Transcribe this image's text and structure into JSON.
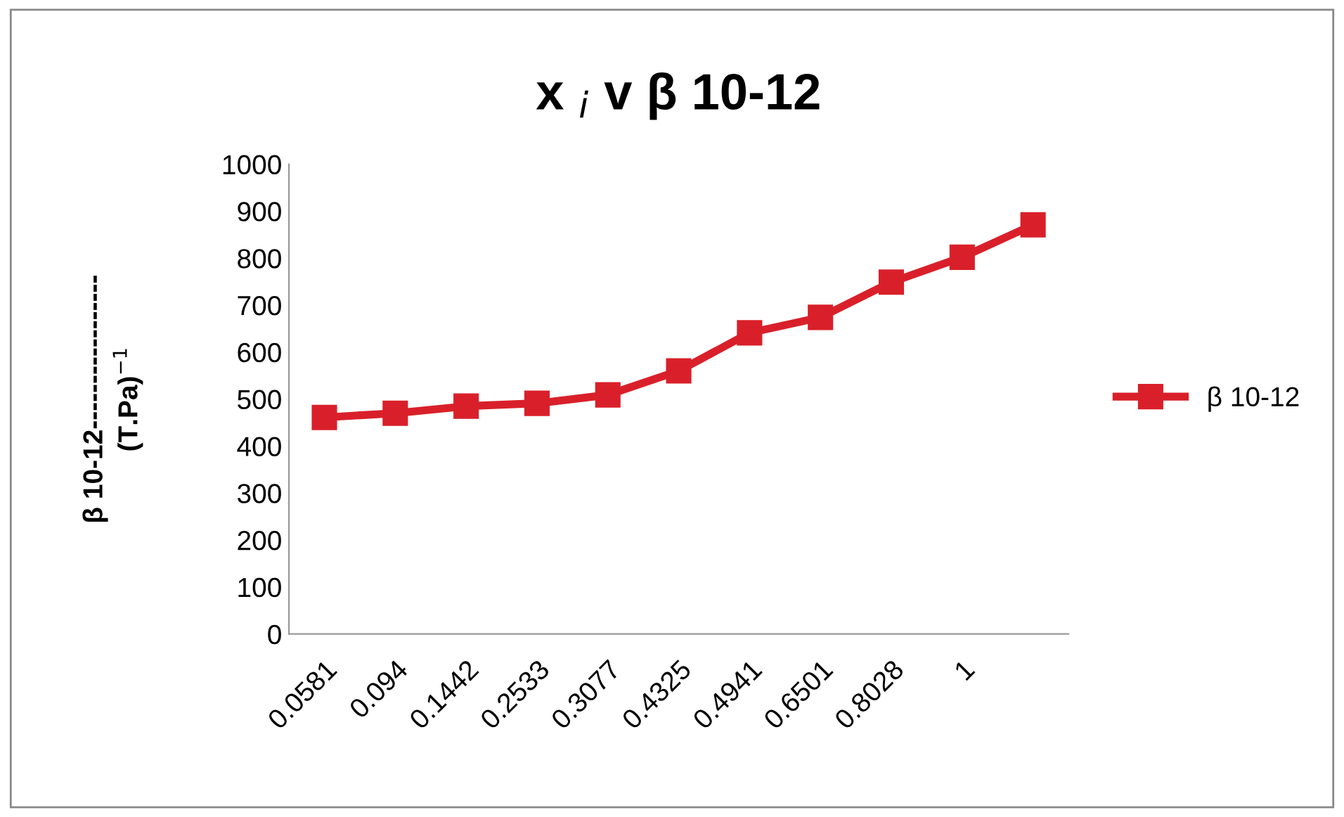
{
  "chart_data": {
    "type": "line",
    "title": "x $_{i}$ v β 10-12",
    "ylabel": "β 10-12-----------------\n(T.Pa)$^{−1}$",
    "categories": [
      "0.0581",
      "0.094",
      "0.1442",
      "0.2533",
      "0.3077",
      "0.4325",
      "0.4941",
      "0.6501",
      "0.8028",
      "1",
      null
    ],
    "series": [
      {
        "name": "β 10-12",
        "color": "#d9202a",
        "values": [
          461,
          470,
          485,
          491,
          509,
          560,
          641,
          674,
          749,
          802,
          871
        ]
      }
    ],
    "ylim": [
      0,
      1000
    ],
    "yticks": [
      0,
      100,
      200,
      300,
      400,
      500,
      600,
      700,
      800,
      900,
      1000
    ],
    "grid": false,
    "legend": "right",
    "marker": "square",
    "line_style": "solid"
  }
}
